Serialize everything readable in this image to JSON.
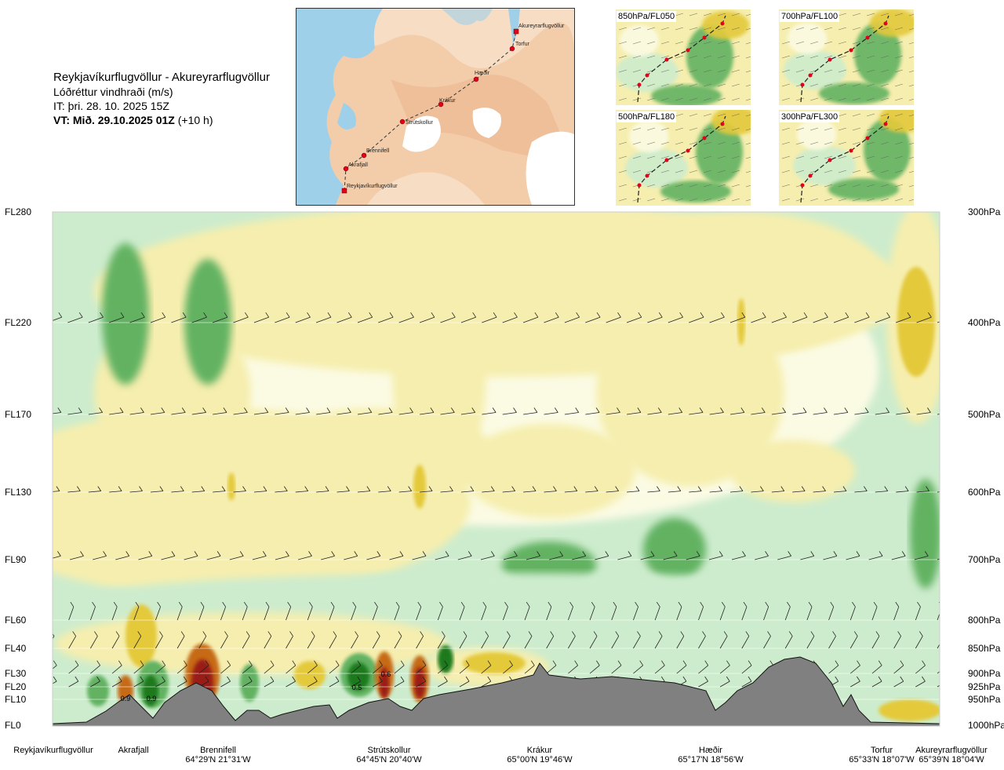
{
  "header": {
    "route": "Reykjavíkurflugvöllur - Akureyrarflugvöllur",
    "parameter": "Lóðréttur vindhraði (m/s)",
    "issue_time": "IT: þri. 28. 10. 2025 15Z",
    "valid_time": "VT: Mið. 29.10.2025 01Z",
    "valid_offset": "(+10 h)"
  },
  "map": {
    "colors": {
      "land": "#f6ddc4",
      "sea": "#9fd0ea",
      "ice": "#ffffff",
      "route": "#333333",
      "point": "#e3001b"
    },
    "stations": [
      {
        "name": "Akureyrarflugvöllur"
      },
      {
        "name": "Torfur"
      },
      {
        "name": "Hæðir"
      },
      {
        "name": "Krákur"
      },
      {
        "name": "Strútskollur"
      },
      {
        "name": "Brennifell"
      },
      {
        "name": "Akrafjall"
      },
      {
        "name": "Reykjavíkurflugvöllur"
      }
    ]
  },
  "mini_maps": [
    {
      "label": "850hPa/FL050"
    },
    {
      "label": "700hPa/FL100"
    },
    {
      "label": "500hPa/FL180"
    },
    {
      "label": "300hPa/FL300"
    }
  ],
  "chart_data": {
    "type": "heatmap",
    "variable": "Lóðréttur vindhraði (m/s)",
    "y_levels": [
      {
        "fl": "FL280",
        "pressure": "300hPa"
      },
      {
        "fl": "FL220",
        "pressure": "400hPa"
      },
      {
        "fl": "FL170",
        "pressure": "500hPa"
      },
      {
        "fl": "FL130",
        "pressure": "600hPa"
      },
      {
        "fl": "FL90",
        "pressure": "700hPa"
      },
      {
        "fl": "FL60",
        "pressure": "800hPa"
      },
      {
        "fl": "FL40",
        "pressure": "850hPa"
      },
      {
        "fl": "FL30",
        "pressure": "900hPa"
      },
      {
        "fl": "FL20",
        "pressure": "925hPa"
      },
      {
        "fl": "FL10",
        "pressure": "950hPa"
      },
      {
        "fl": "FL0",
        "pressure": "1000hPa"
      }
    ],
    "x_locations": [
      {
        "name": "Reykjavíkurflugvöllur",
        "coord": ""
      },
      {
        "name": "Akrafjall",
        "coord": ""
      },
      {
        "name": "Brennifell",
        "coord": "64°29'N 21°31'W"
      },
      {
        "name": "Strútskollur",
        "coord": "64°45'N 20°40'W"
      },
      {
        "name": "Krákur",
        "coord": "65°00'N 19°46'W"
      },
      {
        "name": "Hæðir",
        "coord": "65°17'N 18°56'W"
      },
      {
        "name": "Torfur",
        "coord": "65°33'N 18°07'W"
      },
      {
        "name": "Akureyrarflugvöllur",
        "coord": "65°39'N 18°04'W"
      }
    ],
    "value_labels": [
      "0.9",
      "0.9",
      "0.5",
      "0.6"
    ],
    "colors": {
      "strong_down": "#1b7a1b",
      "down": "#62b262",
      "weak_down": "#cdeccd",
      "neutral": "#fbfbe4",
      "weak_up": "#f6eeae",
      "up": "#e4c93a",
      "strong_up": "#c66a12",
      "very_strong_up": "#9a1a16",
      "terrain": "#808080"
    }
  }
}
